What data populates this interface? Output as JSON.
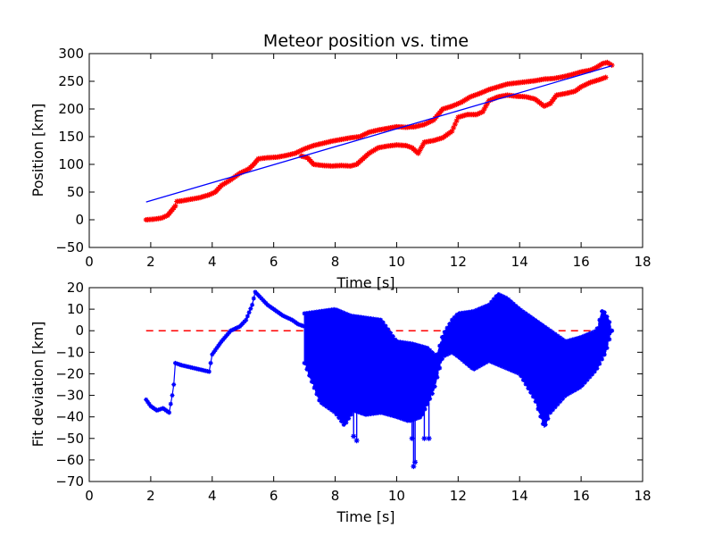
{
  "chart_data": [
    {
      "type": "scatter",
      "title": "Meteor position vs. time",
      "xlabel": "Time [s]",
      "ylabel": "Position [km]",
      "xlim": [
        0,
        18
      ],
      "ylim": [
        -50,
        300
      ],
      "xticks": [
        "0",
        "2",
        "4",
        "6",
        "8",
        "10",
        "12",
        "14",
        "16",
        "18"
      ],
      "yticks": [
        "−50",
        "0",
        "50",
        "100",
        "150",
        "200",
        "250",
        "300"
      ],
      "grid": false,
      "series": [
        {
          "kind": "markers",
          "color": "#ff0000",
          "x": [
            1.85,
            2.1,
            2.35,
            2.55,
            2.7,
            2.8,
            2.85,
            3.0,
            3.3,
            3.6,
            3.9,
            4.1,
            4.3,
            4.6,
            4.9,
            5.2,
            5.35,
            5.5,
            5.8,
            6.1,
            6.4,
            6.7,
            7.0,
            7.3,
            7.6,
            7.9,
            8.2,
            8.5,
            8.8,
            9.1,
            9.4,
            9.7,
            10.0,
            10.3,
            10.6,
            10.9,
            11.2,
            11.5,
            11.8,
            12.1,
            12.4,
            12.7,
            13.0,
            13.3,
            13.6,
            13.9,
            14.2,
            14.5,
            14.8,
            15.1,
            15.4,
            15.7,
            16.0,
            16.3,
            16.5,
            16.7,
            16.85,
            17.0
          ],
          "y": [
            0,
            1,
            3,
            8,
            18,
            25,
            33,
            34,
            37,
            40,
            45,
            50,
            62,
            72,
            84,
            92,
            100,
            110,
            112,
            113,
            116,
            120,
            128,
            134,
            138,
            142,
            145,
            148,
            150,
            158,
            162,
            165,
            168,
            167,
            168,
            172,
            180,
            200,
            205,
            212,
            222,
            228,
            235,
            240,
            245,
            247,
            249,
            251,
            254,
            255,
            258,
            262,
            267,
            270,
            275,
            282,
            284,
            279
          ]
        },
        {
          "kind": "markers",
          "color": "#ff0000",
          "x": [
            6.9,
            7.1,
            7.3,
            7.6,
            7.9,
            8.2,
            8.5,
            8.7,
            8.9,
            9.1,
            9.4,
            9.7,
            10.0,
            10.3,
            10.5,
            10.7,
            10.9,
            11.2,
            11.5,
            11.8,
            12.0,
            12.3,
            12.6,
            12.8,
            13.0,
            13.3,
            13.6,
            13.9,
            14.2,
            14.5,
            14.8,
            15.0,
            15.2,
            15.5,
            15.8,
            16.0,
            16.3,
            16.6,
            16.8
          ],
          "y": [
            115,
            112,
            100,
            98,
            97,
            98,
            97,
            100,
            110,
            120,
            130,
            133,
            135,
            134,
            130,
            120,
            140,
            143,
            148,
            160,
            185,
            190,
            190,
            195,
            215,
            222,
            225,
            223,
            222,
            218,
            205,
            210,
            225,
            228,
            232,
            240,
            248,
            253,
            257
          ]
        },
        {
          "kind": "line",
          "color": "#0000ff",
          "x": [
            1.85,
            17.0
          ],
          "y": [
            32,
            278
          ]
        }
      ]
    },
    {
      "type": "line",
      "title": "",
      "xlabel": "Time [s]",
      "ylabel": "Fit deviation [km]",
      "xlim": [
        0,
        18
      ],
      "ylim": [
        -70,
        20
      ],
      "xticks": [
        "0",
        "2",
        "4",
        "6",
        "8",
        "10",
        "12",
        "14",
        "16",
        "18"
      ],
      "yticks": [
        "−70",
        "−60",
        "−50",
        "−40",
        "−30",
        "−20",
        "−10",
        "0",
        "10",
        "20"
      ],
      "grid": false,
      "series": [
        {
          "kind": "line-markers",
          "color": "#0000ff",
          "x": [
            1.85,
            2.0,
            2.2,
            2.4,
            2.6,
            2.7,
            2.75,
            2.8,
            3.0,
            3.3,
            3.6,
            3.9,
            4.0,
            4.3,
            4.6,
            4.9,
            5.1,
            5.3,
            5.4,
            5.6,
            5.8,
            6.0,
            6.3,
            6.6,
            6.8,
            7.0
          ],
          "y": [
            -32,
            -35,
            -37,
            -36,
            -38,
            -30,
            -25,
            -15,
            -16,
            -17,
            -18,
            -19,
            -11,
            -5,
            0,
            2,
            5,
            12,
            18,
            15,
            12,
            10,
            7,
            5,
            3,
            2
          ]
        },
        {
          "kind": "upper-envelope",
          "color": "#0000ff",
          "x": [
            7.0,
            7.5,
            8.0,
            8.5,
            9.0,
            9.5,
            10.0,
            10.5,
            11.0,
            11.3,
            11.5,
            11.8,
            12.0,
            12.5,
            13.0,
            13.3,
            13.6,
            14.0,
            14.5,
            15.0,
            15.5,
            16.0,
            16.5,
            16.7,
            16.9,
            17.0
          ],
          "y": [
            8,
            9,
            10,
            7,
            6,
            5,
            -5,
            -6,
            -8,
            -12,
            -2,
            5,
            8,
            9,
            12,
            17,
            15,
            10,
            5,
            0,
            -5,
            -3,
            0,
            10,
            5,
            0
          ]
        },
        {
          "kind": "lower-envelope",
          "color": "#0000ff",
          "x": [
            7.0,
            7.5,
            8.0,
            8.3,
            8.6,
            9.0,
            9.5,
            10.0,
            10.4,
            10.8,
            11.2,
            11.5,
            11.8,
            12.0,
            12.5,
            13.0,
            13.5,
            14.0,
            14.5,
            14.8,
            15.0,
            15.5,
            16.0,
            16.5,
            16.8,
            17.0
          ],
          "y": [
            -15,
            -33,
            -38,
            -44,
            -37,
            -39,
            -38,
            -40,
            -42,
            -40,
            -28,
            -12,
            -10,
            -12,
            -18,
            -14,
            -17,
            -20,
            -32,
            -45,
            -38,
            -30,
            -26,
            -18,
            -10,
            0
          ]
        },
        {
          "kind": "spikes",
          "color": "#0000ff",
          "x": [
            8.6,
            8.7,
            9.6,
            10.1,
            10.5,
            10.55,
            10.6,
            10.9,
            11.05
          ],
          "y": [
            -49,
            -51,
            -38,
            -38,
            -50,
            -63,
            -61,
            -50,
            -50
          ]
        },
        {
          "kind": "reference",
          "color": "#ff0000",
          "x": [
            1.85,
            17.0
          ],
          "y": [
            0,
            0
          ]
        }
      ]
    }
  ]
}
